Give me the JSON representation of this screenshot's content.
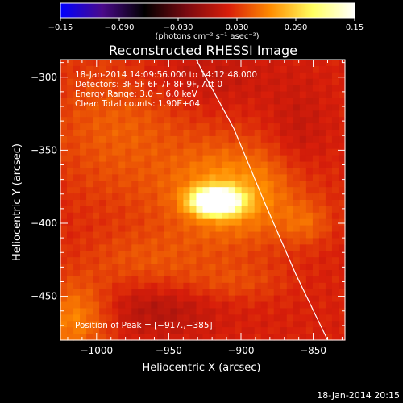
{
  "chart_data": {
    "type": "heatmap",
    "title": "Reconstructed RHESSI Image",
    "xlabel": "Heliocentric X (arcsec)",
    "ylabel": "Heliocentric Y (arcsec)",
    "xlim": [
      -1025,
      -828
    ],
    "ylim": [
      -480,
      -288
    ],
    "x_ticks": [
      -1000,
      -950,
      -900,
      -850
    ],
    "x_tick_labels": [
      "−1000",
      "−950",
      "−900",
      "−850"
    ],
    "y_ticks": [
      -300,
      -350,
      -400,
      -450
    ],
    "y_tick_labels": [
      "−300",
      "−350",
      "−400",
      "−450"
    ],
    "colorbar": {
      "range": [
        -0.15,
        0.15
      ],
      "ticks": [
        -0.15,
        -0.09,
        -0.03,
        0.03,
        0.09,
        0.15
      ],
      "tick_labels": [
        "−0.15",
        "−0.090",
        "−0.030",
        "0.030",
        "0.090",
        "0.15"
      ],
      "units": "(photons cm⁻² s⁻¹ asec⁻²)",
      "colors": [
        "#0000ff",
        "#4a0a8a",
        "#000000",
        "#7a0a10",
        "#d81e0a",
        "#ff8c00",
        "#ffff60",
        "#ffffff"
      ]
    },
    "info_lines": [
      "18-Jan-2014 14:09:56.000 to 14:12:48.000",
      "Detectors: 3F 5F 6F 7F 8F 9F, Att 0",
      "Energy Range: 3.0 − 6.0 keV",
      "Clean     Total counts: 1.90E+04"
    ],
    "peak_label": "Position of Peak = [−917.,−385]",
    "peak": {
      "x": -917,
      "y": -385,
      "value": 0.15
    },
    "limb_line": [
      [
        -931,
        -288
      ],
      [
        -905,
        -335
      ],
      [
        -884,
        -385
      ],
      [
        -862,
        -435
      ],
      [
        -840,
        -480
      ]
    ],
    "features": [
      {
        "x": -917,
        "y": -385,
        "sx": 11,
        "sy": 6,
        "amp": 0.19
      },
      {
        "x": -905,
        "y": -380,
        "sx": 32,
        "sy": 24,
        "amp": 0.05
      },
      {
        "x": -985,
        "y": -330,
        "sx": 35,
        "sy": 40,
        "amp": 0.025
      },
      {
        "x": -1015,
        "y": -465,
        "sx": 18,
        "sy": 18,
        "amp": 0.04
      },
      {
        "x": -855,
        "y": -400,
        "sx": 12,
        "sy": 10,
        "amp": 0.02
      },
      {
        "x": -965,
        "y": -425,
        "sx": 30,
        "sy": 14,
        "amp": 0.018
      },
      {
        "x": -905,
        "y": -440,
        "sx": 25,
        "sy": 10,
        "amp": 0.015
      },
      {
        "x": -940,
        "y": -300,
        "sx": 40,
        "sy": 16,
        "amp": -0.015
      },
      {
        "x": -960,
        "y": -460,
        "sx": 30,
        "sy": 12,
        "amp": -0.018
      },
      {
        "x": -860,
        "y": -340,
        "sx": 14,
        "sy": 22,
        "amp": -0.012
      }
    ]
  },
  "footer": {
    "timestamp": "18-Jan-2014 20:15"
  }
}
